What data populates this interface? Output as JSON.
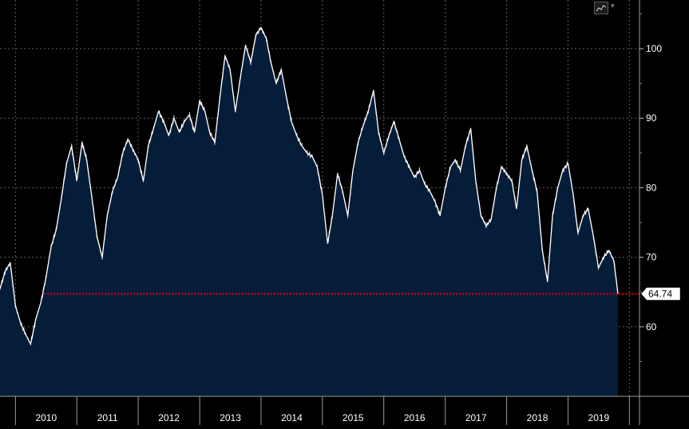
{
  "toolbar": {
    "chart_style_icon": "line-chart-icon",
    "dropdown_icon": "chevron-down-icon",
    "dropdown_glyph": "▾"
  },
  "colors": {
    "background": "#000000",
    "area_fill": "#061d3a",
    "line": "#ffffff",
    "grid": "#5f5f5f",
    "reference_line": "#e60000",
    "axis_text": "#ffffff"
  },
  "chart_data": {
    "type": "area",
    "title": "",
    "xlabel": "",
    "ylabel": "",
    "x_start": "2009-10-01",
    "x_end": "2019-10-25",
    "ylim": [
      50,
      107
    ],
    "grid": true,
    "y_axis_position": "right",
    "y_ticks": [
      "60",
      "70",
      "80",
      "90",
      "100"
    ],
    "x_tick_labels": [
      "2010",
      "2011",
      "2012",
      "2013",
      "2014",
      "2015",
      "2016",
      "2017",
      "2018",
      "2019"
    ],
    "current_value_label": "64.74",
    "reference_line": {
      "value": 64.74,
      "start": "2010-06-20",
      "style": "dotted"
    },
    "series": [
      {
        "x": [
          "2009-10-01",
          "2009-11-01",
          "2009-12-01",
          "2010-01-01",
          "2010-02-01",
          "2010-03-01",
          "2010-04-01",
          "2010-05-01",
          "2010-06-01",
          "2010-07-01",
          "2010-08-01",
          "2010-09-01",
          "2010-10-01",
          "2010-11-01",
          "2010-12-01",
          "2011-01-01",
          "2011-02-01",
          "2011-03-01",
          "2011-04-01",
          "2011-05-01",
          "2011-06-01",
          "2011-07-01",
          "2011-08-01",
          "2011-09-01",
          "2011-10-01",
          "2011-11-01",
          "2011-12-01",
          "2012-01-01",
          "2012-02-01",
          "2012-03-01",
          "2012-04-01",
          "2012-05-01",
          "2012-06-01",
          "2012-07-01",
          "2012-08-01",
          "2012-09-01",
          "2012-10-01",
          "2012-11-01",
          "2012-12-01",
          "2013-01-01",
          "2013-02-01",
          "2013-03-01",
          "2013-04-01",
          "2013-05-01",
          "2013-06-01",
          "2013-07-01",
          "2013-08-01",
          "2013-09-01",
          "2013-10-01",
          "2013-11-01",
          "2013-12-01",
          "2014-01-01",
          "2014-02-01",
          "2014-03-01",
          "2014-04-01",
          "2014-05-01",
          "2014-06-01",
          "2014-07-01",
          "2014-08-01",
          "2014-09-01",
          "2014-10-01",
          "2014-11-01",
          "2014-12-01",
          "2015-01-01",
          "2015-02-01",
          "2015-03-01",
          "2015-04-01",
          "2015-05-01",
          "2015-06-01",
          "2015-07-01",
          "2015-08-01",
          "2015-09-01",
          "2015-10-01",
          "2015-11-01",
          "2015-12-01",
          "2016-01-01",
          "2016-02-01",
          "2016-03-01",
          "2016-04-01",
          "2016-05-01",
          "2016-06-01",
          "2016-07-01",
          "2016-08-01",
          "2016-09-01",
          "2016-10-01",
          "2016-11-01",
          "2016-12-01",
          "2017-01-01",
          "2017-02-01",
          "2017-03-01",
          "2017-04-01",
          "2017-05-01",
          "2017-06-01",
          "2017-07-01",
          "2017-08-01",
          "2017-09-01",
          "2017-10-01",
          "2017-11-01",
          "2017-12-01",
          "2018-01-01",
          "2018-02-01",
          "2018-03-01",
          "2018-04-01",
          "2018-05-01",
          "2018-06-01",
          "2018-07-01",
          "2018-08-01",
          "2018-09-01",
          "2018-10-01",
          "2018-11-01",
          "2018-12-01",
          "2019-01-01",
          "2019-02-01",
          "2019-03-01",
          "2019-04-01",
          "2019-05-01",
          "2019-06-01",
          "2019-07-01",
          "2019-08-01",
          "2019-09-01",
          "2019-10-01",
          "2019-10-25"
        ],
        "values": [
          65.5,
          68.0,
          69.2,
          63.0,
          60.5,
          59.0,
          57.5,
          61.0,
          63.5,
          67.0,
          71.5,
          74.0,
          78.5,
          83.5,
          86.0,
          81.0,
          86.5,
          84.0,
          78.5,
          73.0,
          70.0,
          76.0,
          79.5,
          81.5,
          85.0,
          87.0,
          85.5,
          84.0,
          81.0,
          86.0,
          88.5,
          91.0,
          89.5,
          87.5,
          90.0,
          88.0,
          89.5,
          90.5,
          88.0,
          92.5,
          91.0,
          88.0,
          86.5,
          93.0,
          99.0,
          97.0,
          91.0,
          96.0,
          100.5,
          98.0,
          102.0,
          103.0,
          101.5,
          98.0,
          95.0,
          97.0,
          93.0,
          89.5,
          87.5,
          86.0,
          85.0,
          84.5,
          83.0,
          79.0,
          72.0,
          76.0,
          82.0,
          79.5,
          76.0,
          82.5,
          86.5,
          89.0,
          91.0,
          94.0,
          88.0,
          85.0,
          87.5,
          89.5,
          87.0,
          84.5,
          83.0,
          81.5,
          82.5,
          80.5,
          79.5,
          78.0,
          76.0,
          80.0,
          83.0,
          84.0,
          82.5,
          86.0,
          88.5,
          81.0,
          76.0,
          74.5,
          75.5,
          80.0,
          83.0,
          82.0,
          81.0,
          77.0,
          84.0,
          86.0,
          82.5,
          79.5,
          71.0,
          66.5,
          76.0,
          80.0,
          82.5,
          83.5,
          79.0,
          73.5,
          76.0,
          77.0,
          73.0,
          68.5,
          70.0,
          71.0,
          69.5,
          64.74
        ]
      }
    ]
  }
}
